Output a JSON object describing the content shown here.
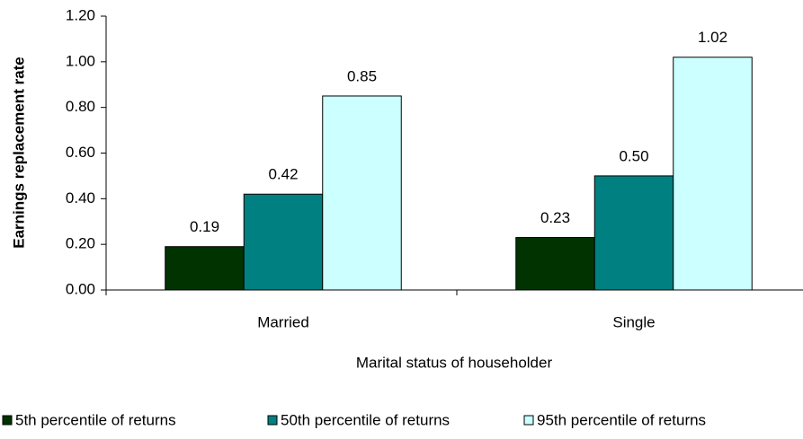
{
  "chart_data": {
    "type": "bar",
    "x_label": "Marital status of householder",
    "y_label": "Earnings replacement rate",
    "categories": [
      "Married",
      "Single"
    ],
    "series": [
      {
        "name": "5th percentile of returns",
        "color": "#003300",
        "values": [
          0.19,
          0.23
        ],
        "value_labels": [
          "0.19",
          "0.23"
        ]
      },
      {
        "name": "50th percentile of returns",
        "color": "#008080",
        "values": [
          0.42,
          0.5
        ],
        "value_labels": [
          "0.42",
          "0.50"
        ]
      },
      {
        "name": "95th percentile of returns",
        "color": "#ccffff",
        "values": [
          0.85,
          1.02
        ],
        "value_labels": [
          "0.85",
          "1.02"
        ]
      }
    ],
    "ylim": [
      0,
      1.2
    ],
    "yticks": [
      {
        "value": 0,
        "label": "0.00"
      },
      {
        "value": 0.2,
        "label": "0.20"
      },
      {
        "value": 0.4,
        "label": "0.40"
      },
      {
        "value": 0.6,
        "label": "0.60"
      },
      {
        "value": 0.8,
        "label": "0.80"
      },
      {
        "value": 1,
        "label": "1.00"
      },
      {
        "value": 1.2,
        "label": "1.20"
      }
    ],
    "legend": "bottom"
  }
}
